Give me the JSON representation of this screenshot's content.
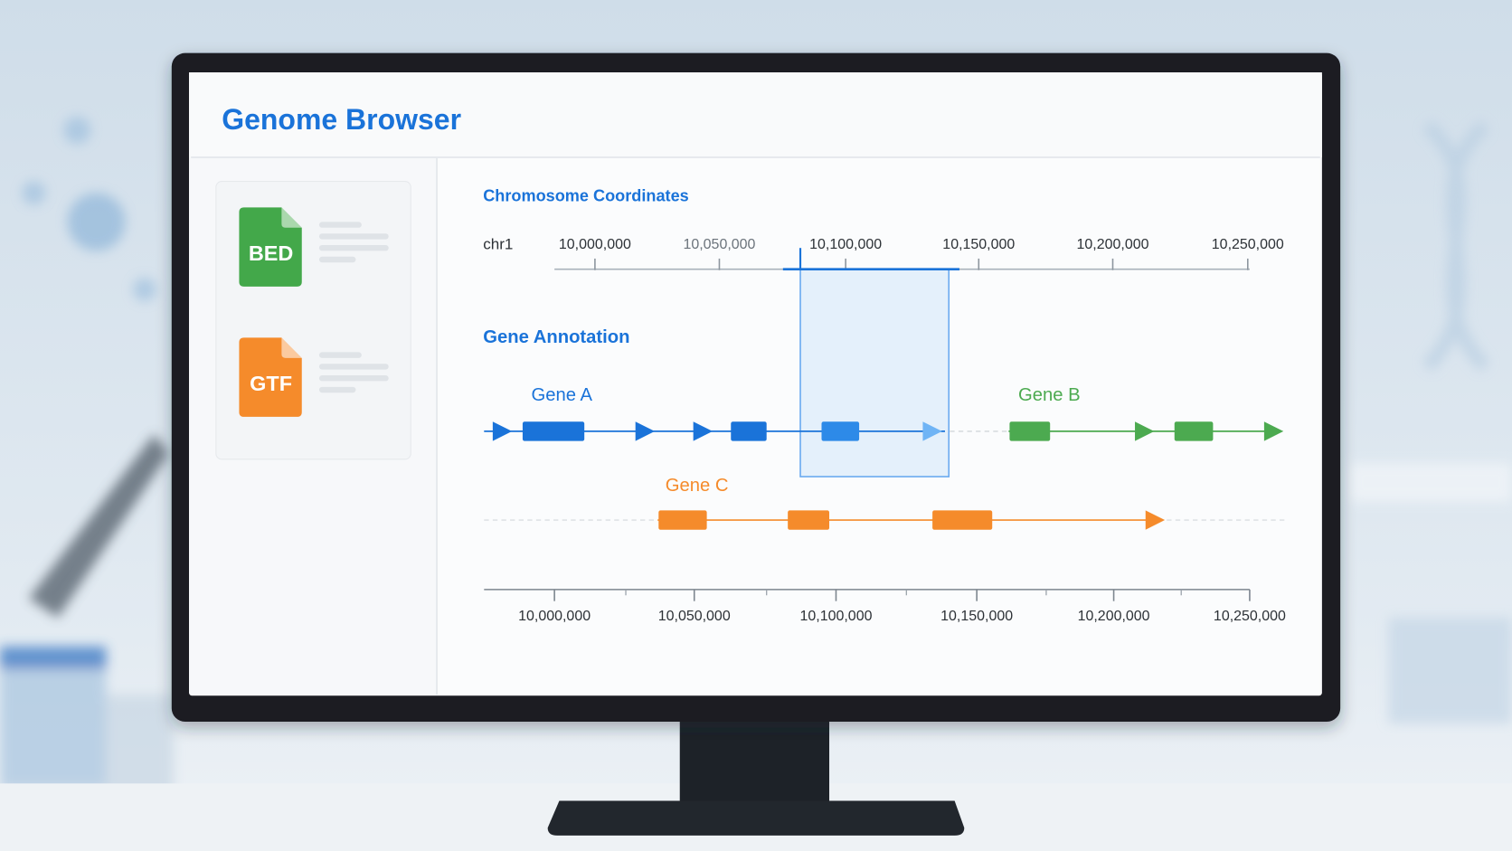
{
  "header": {
    "title": "Genome Browser"
  },
  "sidebar": {
    "files": [
      {
        "label": "BED"
      },
      {
        "label": "GTF"
      }
    ]
  },
  "coordinates": {
    "title": "Chromosome Coordinates",
    "chromosome": "chr1",
    "ticks": [
      "10,000,000",
      "10,050,000",
      "10,100,000",
      "10,150,000",
      "10,200,000",
      "10,250,000"
    ]
  },
  "annotation": {
    "title": "Gene Annotation",
    "genes": [
      {
        "label": "Gene A"
      },
      {
        "label": "Gene B"
      },
      {
        "label": "Gene C"
      }
    ]
  },
  "bottom_axis": {
    "ticks": [
      "10,000,000",
      "10,050,000",
      "10,100,000",
      "10,150,000",
      "10,200,000",
      "10,250,000"
    ]
  }
}
